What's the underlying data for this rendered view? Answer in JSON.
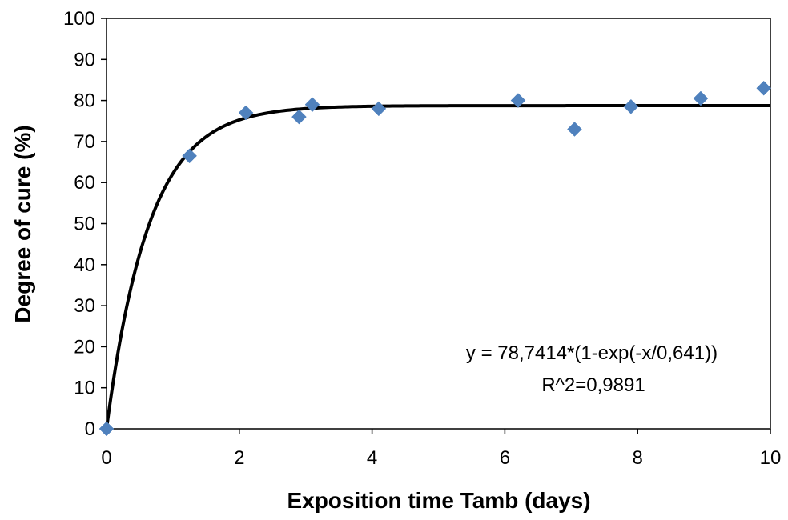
{
  "chart_data": {
    "type": "scatter",
    "title": "",
    "xlabel": "Exposition time Tamb (days)",
    "ylabel": "Degree  of cure (%)",
    "xlim": [
      0,
      10
    ],
    "ylim": [
      0,
      100
    ],
    "xticks": [
      0,
      2,
      4,
      6,
      8,
      10
    ],
    "yticks": [
      0,
      10,
      20,
      30,
      40,
      50,
      60,
      70,
      80,
      90,
      100
    ],
    "xtick_labels": [
      "0",
      "2",
      "4",
      "6",
      "8",
      "10"
    ],
    "ytick_labels": [
      "0",
      "10",
      "20",
      "30",
      "40",
      "50",
      "60",
      "70",
      "80",
      "90",
      "100"
    ],
    "grid": false,
    "legend": "none",
    "series": [
      {
        "marker": "diamond",
        "color": "#4f81bd",
        "x": [
          0,
          1.25,
          2.1,
          2.9,
          3.1,
          4.1,
          6.2,
          7.05,
          7.9,
          8.95,
          9.9
        ],
        "y": [
          0,
          66.5,
          77,
          76,
          79,
          78,
          80,
          73,
          78.5,
          80.5,
          83
        ]
      }
    ],
    "fit": {
      "color": "#000000",
      "a": 78.7414,
      "tau": 0.641,
      "equation": "y = 78,7414*(1-exp(-x/0,641))",
      "r2": "R^2=0,9891"
    }
  }
}
